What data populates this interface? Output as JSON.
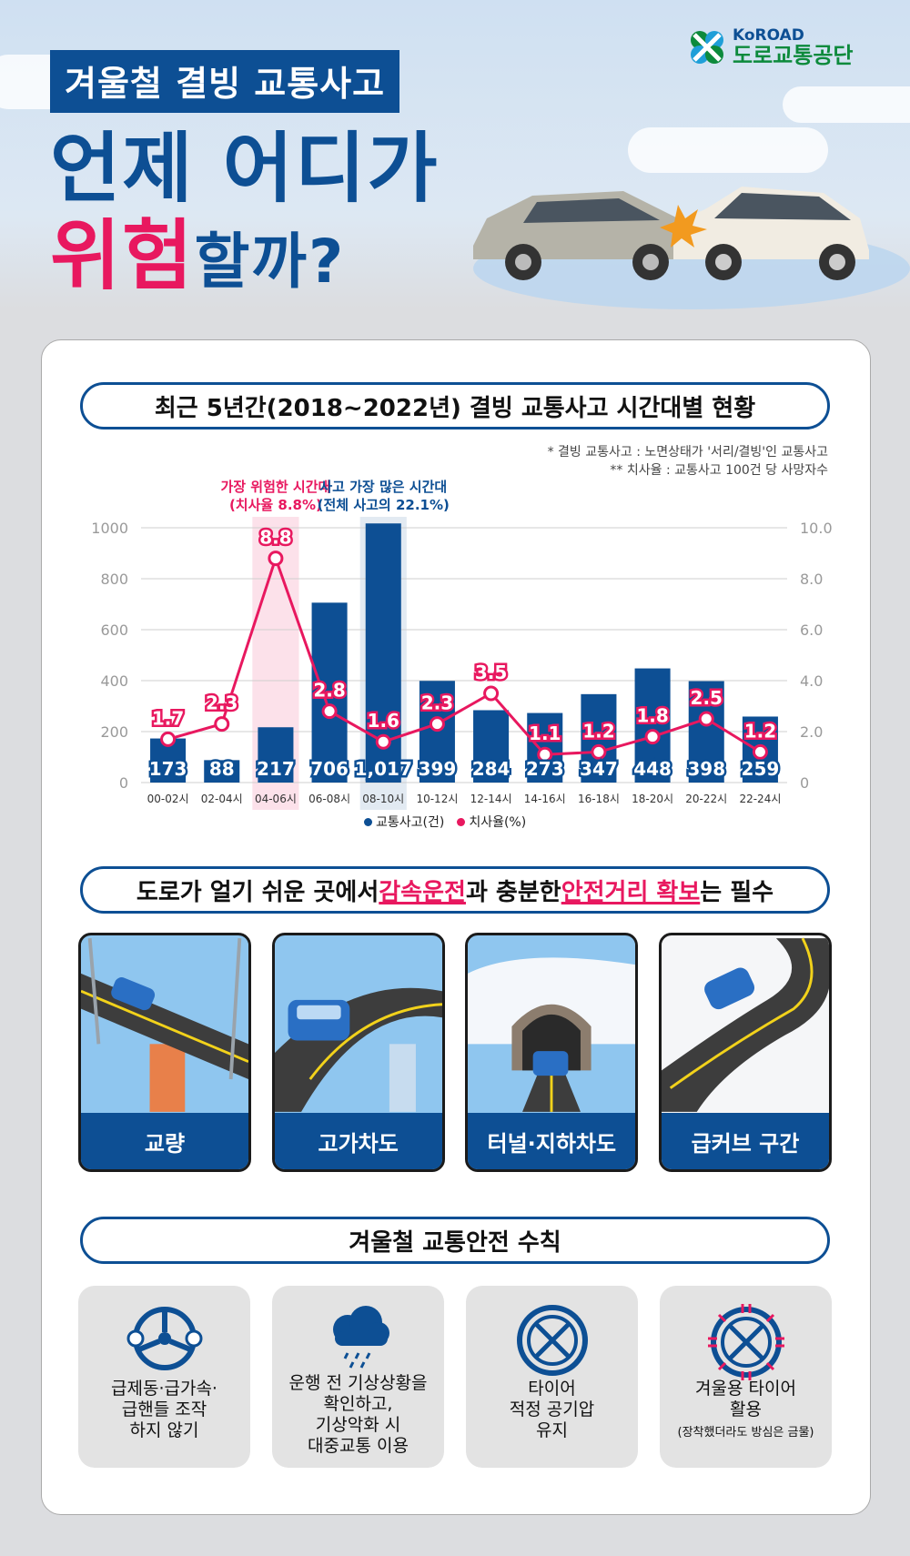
{
  "header": {
    "kicker": "겨울철 결빙 교통사고",
    "title_line1": "언제 어디가",
    "title_line2_pink": "위험",
    "title_line2_blue": "할까?",
    "logo_en": "KoROAD",
    "logo_ko": "도로교통공단"
  },
  "section1": {
    "heading": "최근 5년간(2018~2022년) 결빙 교통사고 시간대별 현황",
    "note1": "* 결빙 교통사고 : 노면상태가 '서리/결빙'인 교통사고",
    "note2": "** 치사율 : 교통사고 100건 당 사망자수"
  },
  "chart_data": {
    "type": "bar",
    "categories": [
      "00-02시",
      "02-04시",
      "04-06시",
      "06-08시",
      "08-10시",
      "10-12시",
      "12-14시",
      "14-16시",
      "16-18시",
      "18-20시",
      "20-22시",
      "22-24시"
    ],
    "series": [
      {
        "name": "교통사고(건)",
        "type": "bar",
        "axis": "left",
        "color": "#0d4f94",
        "values": [
          173,
          88,
          217,
          706,
          1017,
          399,
          284,
          273,
          347,
          448,
          398,
          259
        ],
        "labels": [
          "173",
          "88",
          "217",
          "706",
          "1,017",
          "399",
          "284",
          "273",
          "347",
          "448",
          "398",
          "259"
        ]
      },
      {
        "name": "치사율(%)",
        "type": "line",
        "axis": "right",
        "color": "#e8185f",
        "values": [
          1.7,
          2.3,
          8.8,
          2.8,
          1.6,
          2.3,
          3.5,
          1.1,
          1.2,
          1.8,
          2.5,
          1.2
        ]
      }
    ],
    "left_axis": {
      "ticks": [
        "1000",
        "800",
        "600",
        "400",
        "200",
        "0"
      ],
      "ylim": [
        0,
        1000
      ]
    },
    "right_axis": {
      "ticks": [
        "10.0",
        "8.0",
        "6.0",
        "4.0",
        "2.0",
        "0"
      ],
      "ylim": [
        0,
        10
      ]
    },
    "grid": true,
    "legend_position": "bottom-center",
    "highlights": [
      {
        "index": 2,
        "color": "#e8185f",
        "line1": "가장 위험한 시간대",
        "line2": "(치사율 8.8%)"
      },
      {
        "index": 4,
        "color": "#0d4f94",
        "line1": "사고 가장 많은 시간대",
        "line2": "(전체 사고의 22.1%)"
      }
    ]
  },
  "section2": {
    "heading_a": "도로가 얼기 쉬운 곳에서 ",
    "heading_b": "감속운전",
    "heading_c": "과 충분한 ",
    "heading_d": "안전거리 확보",
    "heading_e": "는 필수",
    "tiles": [
      "교량",
      "고가차도",
      "터널·지하차도",
      "급커브 구간"
    ]
  },
  "section3": {
    "heading": "겨울철 교통안전 수칙",
    "rules": [
      {
        "line1": "급제동·급가속·",
        "line2": "급핸들 조작",
        "line3": "하지 않기",
        "line4": "",
        "sub": ""
      },
      {
        "line1": "운행 전 기상상황을",
        "line2": "확인하고,",
        "line3": "기상악화 시",
        "line4": "대중교통 이용",
        "sub": ""
      },
      {
        "line1": "타이어",
        "line2": "적정 공기압",
        "line3": "유지",
        "line4": "",
        "sub": ""
      },
      {
        "line1": "겨울용 타이어",
        "line2": "활용",
        "line3": "",
        "line4": "",
        "sub": "(장착했더라도 방심은 금물)"
      }
    ]
  }
}
